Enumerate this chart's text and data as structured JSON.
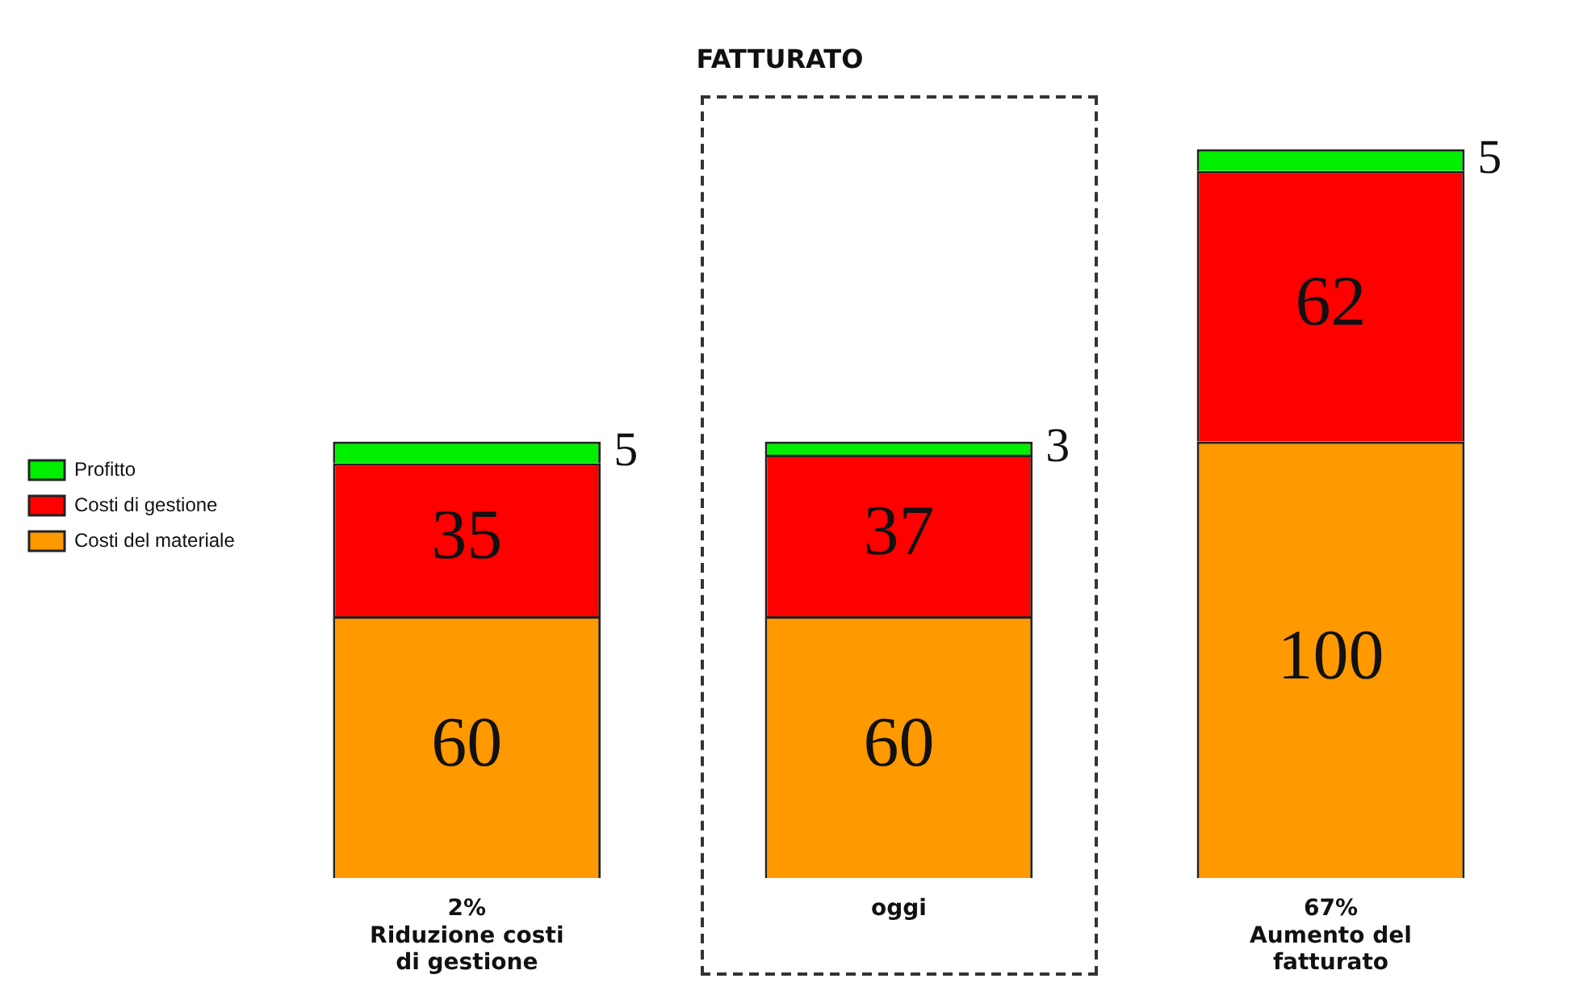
{
  "chart_data": {
    "type": "bar",
    "stacked": true,
    "title": "FATTURATO",
    "categories": [
      "2%\nRiduzione costi\ndi gestione",
      "oggi",
      "67%\nAumento del\nfatturato"
    ],
    "series": [
      {
        "name": "Costi del materiale",
        "color": "#ff9900",
        "values": [
          60,
          60,
          100
        ]
      },
      {
        "name": "Costi di gestione",
        "color": "#ff0000",
        "values": [
          35,
          37,
          62
        ]
      },
      {
        "name": "Profitto",
        "color": "#00ee00",
        "values": [
          5,
          3,
          5
        ]
      }
    ],
    "data_labels": true,
    "legend": "left",
    "grid": false,
    "tick_labels": "x"
  }
}
